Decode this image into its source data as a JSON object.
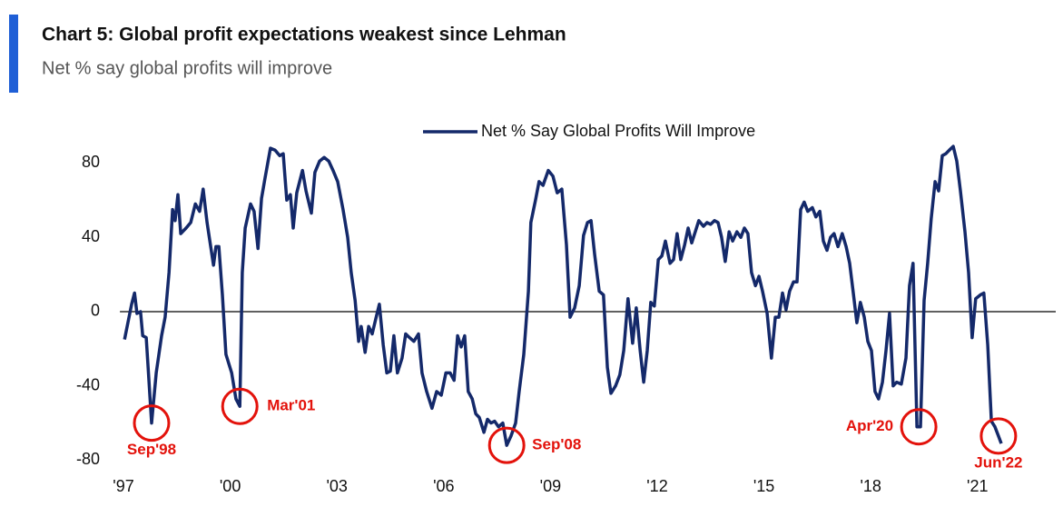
{
  "chart_data": {
    "type": "line",
    "title": "Chart 5: Global profit expectations weakest since Lehman",
    "subtitle": "Net % say global profits will improve",
    "series": [
      {
        "name": "Net % Say Global Profits Will Improve",
        "color": "#14296a",
        "x": [
          1997.03,
          1997.23,
          1997.31,
          1997.38,
          1997.48,
          1997.54,
          1997.64,
          1997.79,
          1997.92,
          1998.07,
          1998.17,
          1998.28,
          1998.38,
          1998.45,
          1998.53,
          1998.61,
          1998.76,
          1998.89,
          1999.02,
          1999.14,
          1999.24,
          1999.35,
          1999.45,
          1999.53,
          1999.6,
          1999.68,
          1999.78,
          1999.88,
          2000.04,
          2000.16,
          2000.27,
          2000.34,
          2000.42,
          2000.57,
          2000.67,
          2000.78,
          2000.88,
          2000.98,
          2001.13,
          2001.26,
          2001.39,
          2001.49,
          2001.59,
          2001.69,
          2001.77,
          2001.87,
          2002.03,
          2002.13,
          2002.28,
          2002.38,
          2002.51,
          2002.64,
          2002.77,
          2002.89,
          2003.02,
          2003.17,
          2003.3,
          2003.4,
          2003.51,
          2003.61,
          2003.68,
          2003.79,
          2003.89,
          2003.99,
          2004.09,
          2004.19,
          2004.3,
          2004.4,
          2004.5,
          2004.6,
          2004.7,
          2004.83,
          2004.93,
          2005.04,
          2005.16,
          2005.29,
          2005.39,
          2005.52,
          2005.67,
          2005.8,
          2005.93,
          2006.06,
          2006.18,
          2006.29,
          2006.39,
          2006.49,
          2006.59,
          2006.69,
          2006.8,
          2006.9,
          2007.0,
          2007.13,
          2007.23,
          2007.33,
          2007.43,
          2007.54,
          2007.66,
          2007.77,
          2007.89,
          2008.02,
          2008.12,
          2008.25,
          2008.38,
          2008.45,
          2008.58,
          2008.68,
          2008.79,
          2008.94,
          2009.07,
          2009.19,
          2009.32,
          2009.45,
          2009.55,
          2009.68,
          2009.81,
          2009.93,
          2010.04,
          2010.14,
          2010.24,
          2010.37,
          2010.49,
          2010.6,
          2010.7,
          2010.83,
          2010.95,
          2011.06,
          2011.18,
          2011.31,
          2011.41,
          2011.52,
          2011.62,
          2011.72,
          2011.82,
          2011.92,
          2012.03,
          2012.13,
          2012.23,
          2012.36,
          2012.46,
          2012.56,
          2012.66,
          2012.77,
          2012.87,
          2012.97,
          2013.07,
          2013.17,
          2013.3,
          2013.4,
          2013.5,
          2013.61,
          2013.71,
          2013.81,
          2013.91,
          2014.02,
          2014.12,
          2014.24,
          2014.35,
          2014.45,
          2014.55,
          2014.65,
          2014.76,
          2014.86,
          2014.96,
          2015.09,
          2015.21,
          2015.32,
          2015.42,
          2015.52,
          2015.62,
          2015.72,
          2015.83,
          2015.93,
          2016.03,
          2016.13,
          2016.23,
          2016.36,
          2016.46,
          2016.57,
          2016.67,
          2016.77,
          2016.87,
          2016.97,
          2017.08,
          2017.2,
          2017.31,
          2017.41,
          2017.51,
          2017.61,
          2017.71,
          2017.82,
          2017.92,
          2018.02,
          2018.12,
          2018.22,
          2018.33,
          2018.43,
          2018.53,
          2018.63,
          2018.73,
          2018.86,
          2018.99,
          2019.09,
          2019.19,
          2019.3,
          2019.4,
          2019.5,
          2019.6,
          2019.7,
          2019.81,
          2019.91,
          2020.01,
          2020.11,
          2020.21,
          2020.32,
          2020.42,
          2020.52,
          2020.65,
          2020.75,
          2020.85,
          2020.95,
          2021.08,
          2021.18,
          2021.29,
          2021.39,
          2021.49,
          2021.59,
          2021.67
        ],
        "values": [
          -15,
          4,
          10,
          -1,
          0,
          -13,
          -14,
          -60,
          -33,
          -13,
          -3,
          21,
          55,
          49,
          63,
          42,
          45,
          48,
          58,
          54,
          66,
          48,
          35,
          25,
          35,
          35,
          9,
          -23,
          -33,
          -47,
          -51,
          21,
          45,
          58,
          54,
          34,
          61,
          72,
          88,
          87,
          84,
          85,
          60,
          63,
          45,
          64,
          76,
          65,
          53,
          75,
          81,
          83,
          81,
          76,
          70,
          55,
          40,
          21,
          6,
          -16,
          -8,
          -22,
          -8,
          -12,
          -4,
          4,
          -18,
          -33,
          -32,
          -13,
          -33,
          -25,
          -12,
          -14,
          -16,
          -12,
          -33,
          -43,
          -52,
          -43,
          -45,
          -33,
          -33,
          -37,
          -13,
          -19,
          -13,
          -43,
          -47,
          -55,
          -57,
          -65,
          -58,
          -60,
          -59,
          -62,
          -60,
          -72,
          -67,
          -60,
          -43,
          -23,
          11,
          48,
          60,
          70,
          68,
          76,
          73,
          64,
          66,
          36,
          -3,
          2,
          14,
          41,
          48,
          49,
          31,
          11,
          9,
          -30,
          -44,
          -40,
          -34,
          -21,
          7,
          -17,
          2,
          -21,
          -38,
          -21,
          5,
          3,
          28,
          30,
          38,
          26,
          28,
          42,
          28,
          36,
          45,
          37,
          43,
          49,
          46,
          48,
          47,
          49,
          48,
          40,
          27,
          43,
          38,
          43,
          40,
          45,
          42,
          21,
          14,
          19,
          11,
          -1,
          -25,
          -3,
          -3,
          10,
          1,
          11,
          16,
          16,
          55,
          59,
          54,
          56,
          51,
          54,
          38,
          33,
          40,
          42,
          35,
          42,
          35,
          26,
          10,
          -6,
          5,
          -3,
          -16,
          -21,
          -43,
          -47,
          -38,
          -21,
          -1,
          -40,
          -38,
          -39,
          -25,
          14,
          26,
          -62,
          -62,
          6,
          26,
          50,
          70,
          65,
          84,
          85,
          87,
          89,
          81,
          65,
          43,
          21,
          -14,
          7,
          9,
          10,
          -18,
          -59,
          -62,
          -67,
          -71
        ]
      }
    ],
    "xlim": [
      1996.9,
      2023.2
    ],
    "xticks": [
      {
        "value": 1997,
        "label": "'97"
      },
      {
        "value": 2000,
        "label": "'00"
      },
      {
        "value": 2003,
        "label": "'03"
      },
      {
        "value": 2006,
        "label": "'06"
      },
      {
        "value": 2009,
        "label": "'09"
      },
      {
        "value": 2012,
        "label": "'12"
      },
      {
        "value": 2015,
        "label": "'15"
      },
      {
        "value": 2018,
        "label": "'18"
      },
      {
        "value": 2021,
        "label": "'21"
      }
    ],
    "ylim": [
      -85,
      95
    ],
    "yticks": [
      -80,
      -40,
      0,
      40,
      80
    ],
    "hline": 0,
    "legend": "top",
    "annotations": [
      {
        "label": "Sep'98",
        "x": 1997.79,
        "y": -60,
        "color": "#e3120b"
      },
      {
        "label": "Mar'01",
        "x": 2000.27,
        "y": -51,
        "color": "#e3120b"
      },
      {
        "label": "Sep'08",
        "x": 2007.77,
        "y": -72,
        "color": "#e3120b"
      },
      {
        "label": "Apr'20",
        "x": 2019.35,
        "y": -62,
        "color": "#e3120b"
      },
      {
        "label": "Jun'22",
        "x": 2021.59,
        "y": -67,
        "color": "#e3120b"
      }
    ]
  }
}
